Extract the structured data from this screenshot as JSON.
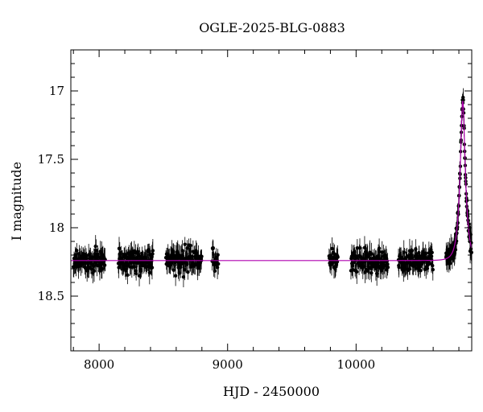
{
  "chart_data": {
    "type": "scatter",
    "title": "OGLE-2025-BLG-0883",
    "xlabel": "HJD - 2450000",
    "ylabel": "I magnitude",
    "xlim": [
      7780,
      10900
    ],
    "ylim": [
      18.9,
      16.7
    ],
    "y_inverted": true,
    "x_ticks": [
      8000,
      9000,
      10000
    ],
    "y_ticks": [
      17,
      17.5,
      18,
      18.5
    ],
    "grid": false,
    "colors": {
      "points": "#000000",
      "model": "#b000b0"
    },
    "baseline_mag": 18.24,
    "data_segments": [
      {
        "x_start": 7800,
        "x_end": 8050,
        "mag": 18.24
      },
      {
        "x_start": 8150,
        "x_end": 8420,
        "mag": 18.24
      },
      {
        "x_start": 8520,
        "x_end": 8800,
        "mag": 18.24
      },
      {
        "x_start": 8880,
        "x_end": 8930,
        "mag": 18.22
      },
      {
        "x_start": 9790,
        "x_end": 9860,
        "mag": 18.25
      },
      {
        "x_start": 9960,
        "x_end": 10250,
        "mag": 18.24
      },
      {
        "x_start": 10330,
        "x_end": 10600,
        "mag": 18.24
      },
      {
        "x_start": 10700,
        "x_end": 10900,
        "mag": 18.2
      }
    ],
    "model": {
      "type": "microlensing",
      "t0": 10830,
      "peak_mag": 17.07,
      "baseline_mag": 18.24
    }
  }
}
